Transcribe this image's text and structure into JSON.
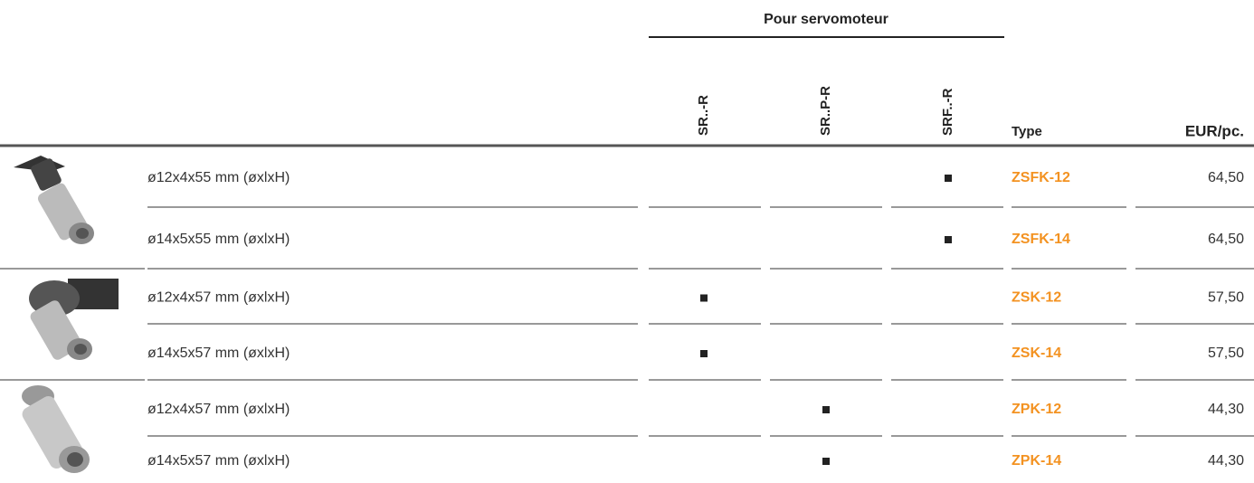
{
  "header": {
    "group_title": "Pour servomoteur",
    "columns": [
      "SR..-R",
      "SR..P-R",
      "SRF..-R"
    ],
    "type": "Type",
    "price": "EUR/pc."
  },
  "table": {
    "rows": [
      {
        "description": "ø12x4x55 mm (øxlxH)",
        "fits": [
          false,
          false,
          true
        ],
        "type": "ZSFK-12",
        "price": "64,50"
      },
      {
        "description": "ø14x5x55 mm (øxlxH)",
        "fits": [
          false,
          false,
          true
        ],
        "type": "ZSFK-14",
        "price": "64,50"
      },
      {
        "description": "ø12x4x57 mm (øxlxH)",
        "fits": [
          true,
          false,
          false
        ],
        "type": "ZSK-12",
        "price": "57,50"
      },
      {
        "description": "ø14x5x57 mm (øxlxH)",
        "fits": [
          true,
          false,
          false
        ],
        "type": "ZSK-14",
        "price": "57,50"
      },
      {
        "description": "ø12x4x57 mm (øxlxH)",
        "fits": [
          false,
          true,
          false
        ],
        "type": "ZPK-12",
        "price": "44,30"
      },
      {
        "description": "ø14x5x57 mm (øxlxH)",
        "fits": [
          false,
          true,
          false
        ],
        "type": "ZPK-14",
        "price": "44,30"
      }
    ]
  }
}
